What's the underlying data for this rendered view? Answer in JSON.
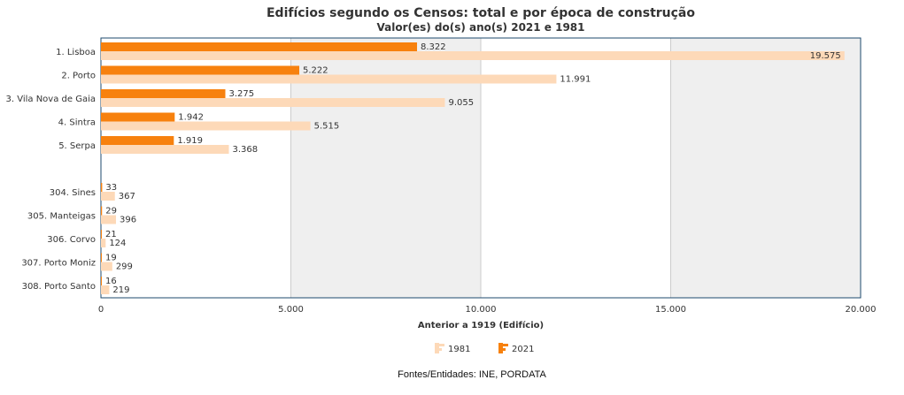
{
  "chart_data": {
    "type": "bar",
    "orientation": "horizontal",
    "title": "Edifícios segundo os Censos: total e por época de construção",
    "subtitle": "Valor(es) do(s) ano(s) 2021 e 1981",
    "xlabel": "Anterior a 1919 (Edifício)",
    "xlim": [
      0,
      20000
    ],
    "xticks": [
      0,
      5000,
      10000,
      15000,
      20000
    ],
    "xtick_labels": [
      "0",
      "5.000",
      "10.000",
      "15.000",
      "20.000"
    ],
    "categories": [
      "1. Lisboa",
      "2. Porto",
      "3. Vila Nova de Gaia",
      "4. Sintra",
      "5. Serpa",
      "304. Sines",
      "305. Manteigas",
      "306. Corvo",
      "307. Porto Moniz",
      "308. Porto Santo"
    ],
    "series": [
      {
        "name": "2021",
        "color": "#f7810e",
        "values": [
          8322,
          5222,
          3275,
          1942,
          1919,
          33,
          29,
          21,
          19,
          16
        ],
        "labels": [
          "8.322",
          "5.222",
          "3.275",
          "1.942",
          "1.919",
          "33",
          "29",
          "21",
          "19",
          "16"
        ]
      },
      {
        "name": "1981",
        "color": "#fdd9b8",
        "values": [
          19575,
          11991,
          9055,
          5515,
          3368,
          367,
          396,
          124,
          299,
          219
        ],
        "labels": [
          "19.575",
          "11.991",
          "9.055",
          "5.515",
          "3.368",
          "367",
          "396",
          "124",
          "299",
          "219"
        ]
      }
    ],
    "grid": true,
    "legend": {
      "position": "bottom-center",
      "items": [
        "1981",
        "2021"
      ]
    }
  },
  "colors": {
    "bar_2021": "#f7810e",
    "bar_1981": "#fdd9b8",
    "band_shade": "#efefef",
    "grid": "#cccccc",
    "axis": "#1c4a6e"
  },
  "source": "Fontes/Entidades: INE, PORDATA"
}
